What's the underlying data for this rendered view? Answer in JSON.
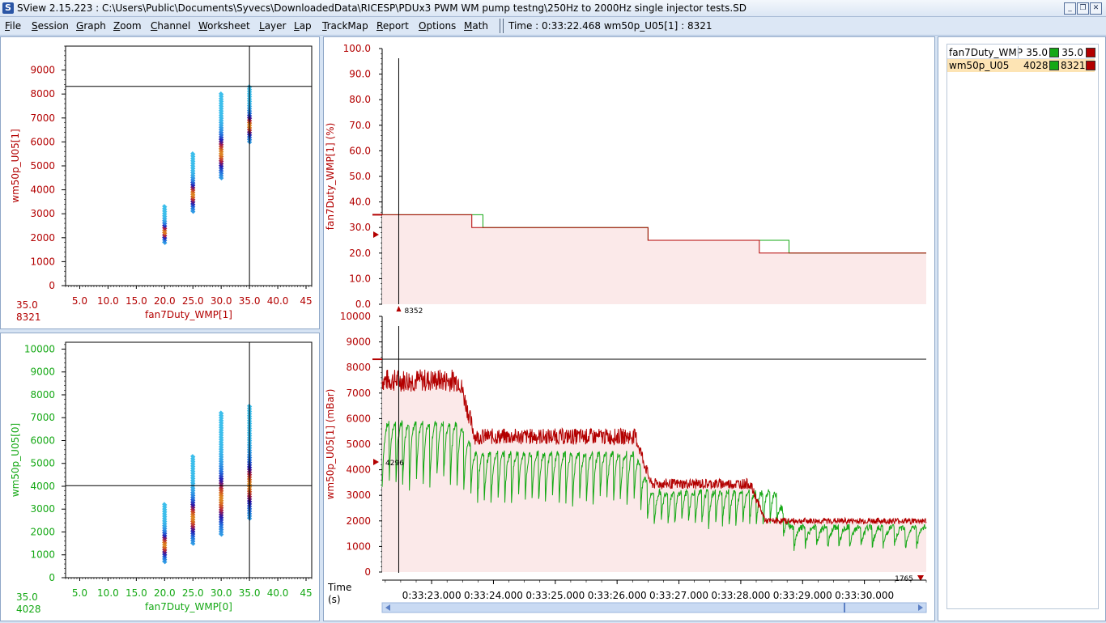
{
  "window": {
    "title": "SView 2.15.223  :  C:\\Users\\Public\\Documents\\Syvecs\\DownloadedData\\RICESP\\PDUx3 PWM WM pump testng\\250Hz to 2000Hz single injector tests.SD",
    "logo": "S",
    "minimize_glyph": "_",
    "restore_glyph": "❐",
    "close_glyph": "✕"
  },
  "menu": [
    {
      "u": "F",
      "rest": "ile"
    },
    {
      "u": "S",
      "rest": "ession"
    },
    {
      "u": "G",
      "rest": "raph"
    },
    {
      "u": "Z",
      "rest": "oom"
    },
    {
      "u": "C",
      "rest": "hannel"
    },
    {
      "u": "W",
      "rest": "orksheet"
    },
    {
      "u": "L",
      "rest": "ayer"
    },
    {
      "u": "L",
      "rest": "ap"
    },
    {
      "u": "T",
      "rest": "rackMap"
    },
    {
      "u": "R",
      "rest": "eport"
    },
    {
      "u": "O",
      "rest": "ptions"
    },
    {
      "u": "M",
      "rest": "ath"
    }
  ],
  "time_readout": "Time : 0:33:22.468   wm50p_U05[1] : 8321",
  "colors": {
    "red": "#b30000",
    "green": "#14a814",
    "cursor": "#000000"
  },
  "scatter_top": {
    "xlabel": "fan7Duty_WMP[1]",
    "ylabel": "wm50p_U05[1]",
    "x_ticks": [
      "5.0",
      "10.0",
      "15.0",
      "20.0",
      "25.0",
      "30.0",
      "35.0",
      "40.0",
      "45"
    ],
    "y_ticks": [
      "0",
      "1000",
      "2000",
      "3000",
      "4000",
      "5000",
      "6000",
      "7000",
      "8000",
      "9000"
    ],
    "cursor_x": 35.0,
    "cursor_y": 8321,
    "readout_x": "35.0",
    "readout_y": "8321",
    "label_color": "#b30000"
  },
  "scatter_bottom": {
    "xlabel": "fan7Duty_WMP[0]",
    "ylabel": "wm50p_U05[0]",
    "x_ticks": [
      "5.0",
      "10.0",
      "15.0",
      "20.0",
      "25.0",
      "30.0",
      "35.0",
      "40.0",
      "45"
    ],
    "y_ticks": [
      "0",
      "1000",
      "2000",
      "3000",
      "4000",
      "5000",
      "6000",
      "7000",
      "8000",
      "9000",
      "10000"
    ],
    "cursor_x": 35.0,
    "cursor_y": 4028,
    "readout_x": "35.0",
    "readout_y": "4028",
    "label_color": "#14a814"
  },
  "chart_data": [
    {
      "type": "scatter",
      "xlabel": "fan7Duty_WMP[1]",
      "ylabel": "wm50p_U05[1]",
      "xlim": [
        2.5,
        46
      ],
      "ylim": [
        0,
        10000
      ],
      "columns": [
        {
          "x": 20,
          "ymin": 1800,
          "ymax": 3300
        },
        {
          "x": 25,
          "ymin": 3100,
          "ymax": 5500
        },
        {
          "x": 30,
          "ymin": 4500,
          "ymax": 8000
        },
        {
          "x": 35,
          "ymin": 6000,
          "ymax": 8300
        }
      ]
    },
    {
      "type": "scatter",
      "xlabel": "fan7Duty_WMP[0]",
      "ylabel": "wm50p_U05[0]",
      "xlim": [
        2.5,
        46
      ],
      "ylim": [
        0,
        10300
      ],
      "columns": [
        {
          "x": 20,
          "ymin": 700,
          "ymax": 3200
        },
        {
          "x": 25,
          "ymin": 1500,
          "ymax": 5300
        },
        {
          "x": 30,
          "ymin": 1900,
          "ymax": 7200
        },
        {
          "x": 35,
          "ymin": 2600,
          "ymax": 7500
        }
      ]
    },
    {
      "type": "line",
      "ylabel": "fan7Duty_WMP[1] (%)",
      "ylim": [
        0,
        100
      ],
      "y_ticks": [
        "0.0",
        "10.0",
        "20.0",
        "30.0",
        "40.0",
        "50.0",
        "60.0",
        "70.0",
        "80.0",
        "90.0",
        "100.0"
      ],
      "xlim": [
        22.2,
        31.0
      ],
      "series": [
        {
          "name": "fan7Duty_WMP[1]",
          "color": "red",
          "steps": [
            [
              22.2,
              35
            ],
            [
              23.65,
              30
            ],
            [
              26.5,
              25
            ],
            [
              28.3,
              20
            ],
            [
              31.0,
              20
            ]
          ]
        },
        {
          "name": "fan7Duty_WMP[0]",
          "color": "green",
          "steps": [
            [
              22.2,
              35
            ],
            [
              23.83,
              30
            ],
            [
              26.5,
              25
            ],
            [
              28.3,
              25
            ],
            [
              28.78,
              20
            ],
            [
              31.0,
              20
            ]
          ]
        }
      ],
      "cursor_time": 22.468,
      "marker_value": "8352"
    },
    {
      "type": "line",
      "ylabel": "wm50p_U05[1] (mBar)",
      "ylim": [
        0,
        10000
      ],
      "y_ticks": [
        "0",
        "1000",
        "2000",
        "3000",
        "4000",
        "5000",
        "6000",
        "7000",
        "8000",
        "9000",
        "10000"
      ],
      "xlim": [
        22.2,
        31.0
      ],
      "x_ticks": [
        "0:33:23.000",
        "0:33:24.000",
        "0:33:25.000",
        "0:33:26.000",
        "0:33:27.000",
        "0:33:28.000",
        "0:33:29.000",
        "0:33:30.000"
      ],
      "xlabel": "Time",
      "xunit": "(s)",
      "series": [
        {
          "name": "wm50p_U05[1]",
          "color": "red",
          "levels": [
            [
              22.2,
              7500
            ],
            [
              23.7,
              5300
            ],
            [
              26.55,
              3450
            ],
            [
              28.4,
              2000
            ],
            [
              31.0,
              2000
            ]
          ]
        },
        {
          "name": "wm50p_U05[0]",
          "color": "green",
          "levels": [
            [
              22.2,
              5000
            ],
            [
              23.7,
              4000
            ],
            [
              26.55,
              2700
            ],
            [
              28.8,
              1500
            ],
            [
              31.0,
              1500
            ]
          ]
        }
      ],
      "cursor_time": 22.468,
      "cursor_value": 8321,
      "left_marker": "4296",
      "right_marker": "1765"
    }
  ],
  "legend": [
    {
      "name": "fan7Duty_WMP",
      "value_a": "35.0",
      "value_b": "35.0",
      "swatch_a": "#14a814",
      "swatch_b": "#b30000",
      "selected": false
    },
    {
      "name": "wm50p_U05",
      "value_a": "4028",
      "value_b": "8321",
      "swatch_a": "#14a814",
      "swatch_b": "#b30000",
      "selected": true
    }
  ]
}
